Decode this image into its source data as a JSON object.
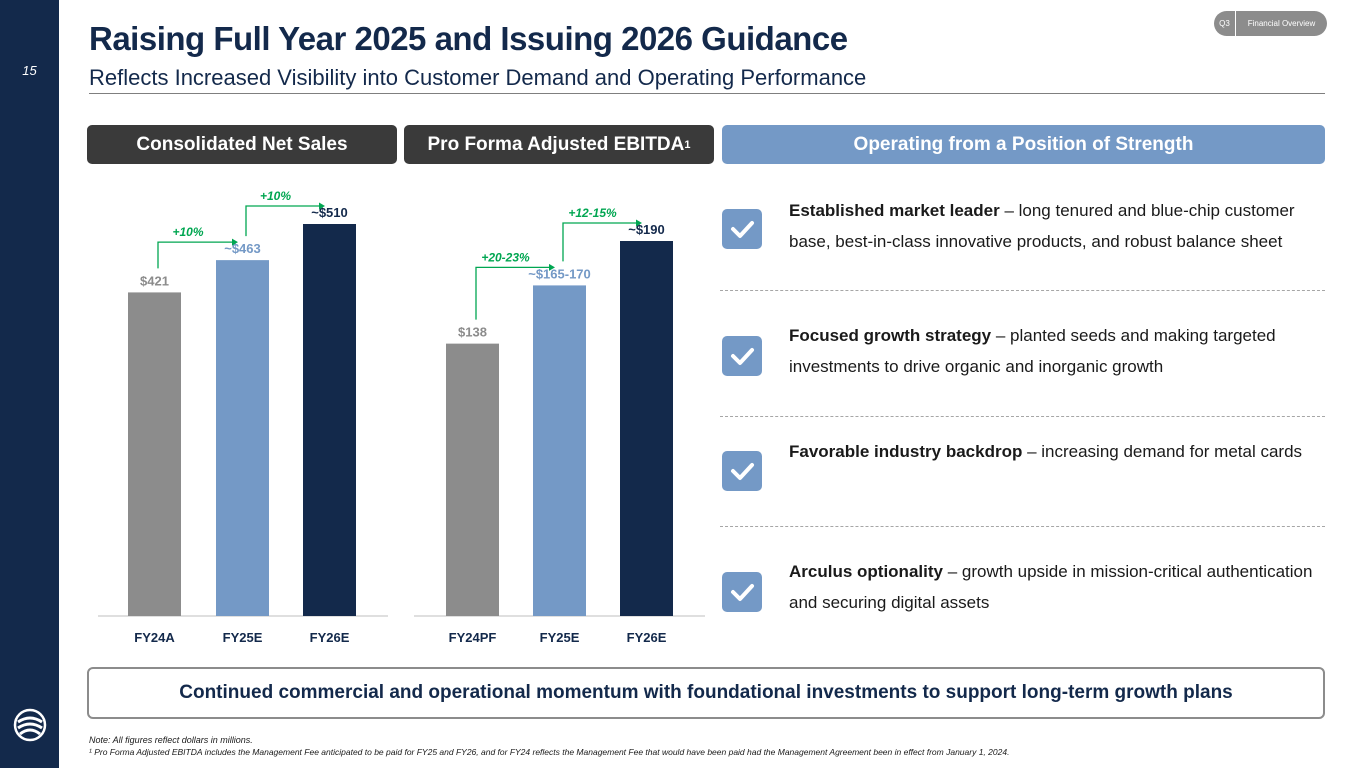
{
  "page_number": "15",
  "title": "Raising Full Year 2025 and Issuing 2026 Guidance",
  "subtitle": "Reflects Increased Visibility into Customer Demand and Operating Performance",
  "tag": {
    "section": "Q3",
    "label": "Financial Overview"
  },
  "headers": {
    "net_sales": "Consolidated Net Sales",
    "ebitda": "Pro Forma Adjusted EBITDA",
    "ebitda_sup": "1",
    "strength": "Operating from a Position of Strength"
  },
  "colors": {
    "navy": "#13294b",
    "blue": "#7499c6",
    "gray": "#8c8c8c",
    "green": "#00a651",
    "dark": "#3a3a3a"
  },
  "chart_data": [
    {
      "type": "bar",
      "title": "Consolidated Net Sales",
      "categories": [
        "FY24A",
        "FY25E",
        "FY26E"
      ],
      "values": [
        421,
        463,
        510
      ],
      "value_labels": [
        "$421",
        "~$463",
        "~$510"
      ],
      "bar_colors": [
        "#8c8c8c",
        "#7499c6",
        "#13294b"
      ],
      "label_colors": [
        "#8c8c8c",
        "#7499c6",
        "#13294b"
      ],
      "growth_annotations": [
        "+10%",
        "+10%"
      ],
      "ylim": [
        0,
        510
      ]
    },
    {
      "type": "bar",
      "title": "Pro Forma Adjusted EBITDA",
      "categories": [
        "FY24PF",
        "FY25E",
        "FY26E"
      ],
      "values": [
        138,
        167.5,
        190
      ],
      "value_labels": [
        "$138",
        "~$165-170",
        "~$190"
      ],
      "bar_colors": [
        "#8c8c8c",
        "#7499c6",
        "#13294b"
      ],
      "label_colors": [
        "#8c8c8c",
        "#7499c6",
        "#13294b"
      ],
      "growth_annotations": [
        "+20-23%",
        "+12-15%"
      ],
      "ylim": [
        0,
        190
      ]
    }
  ],
  "strengths": [
    {
      "bold": "Established market leader",
      "rest": " – long tenured and blue-chip customer base, best-in-class innovative products, and robust balance sheet"
    },
    {
      "bold": "Focused growth strategy",
      "rest": " – planted seeds and making targeted investments to drive organic and inorganic growth"
    },
    {
      "bold": "Favorable industry backdrop",
      "rest": " – increasing demand for metal cards"
    },
    {
      "bold": "Arculus optionality",
      "rest": " – growth upside in mission-critical authentication and securing digital assets"
    }
  ],
  "banner": "Continued commercial and operational momentum with foundational investments to support long-term growth plans",
  "notes": {
    "note1": "Note: All figures reflect dollars in millions.",
    "note2": "¹ Pro Forma Adjusted EBITDA includes the Management Fee anticipated to be paid for FY25 and FY26, and for FY24 reflects the Management Fee that would have been paid had the Management Agreement been in effect from January 1, 2024."
  }
}
